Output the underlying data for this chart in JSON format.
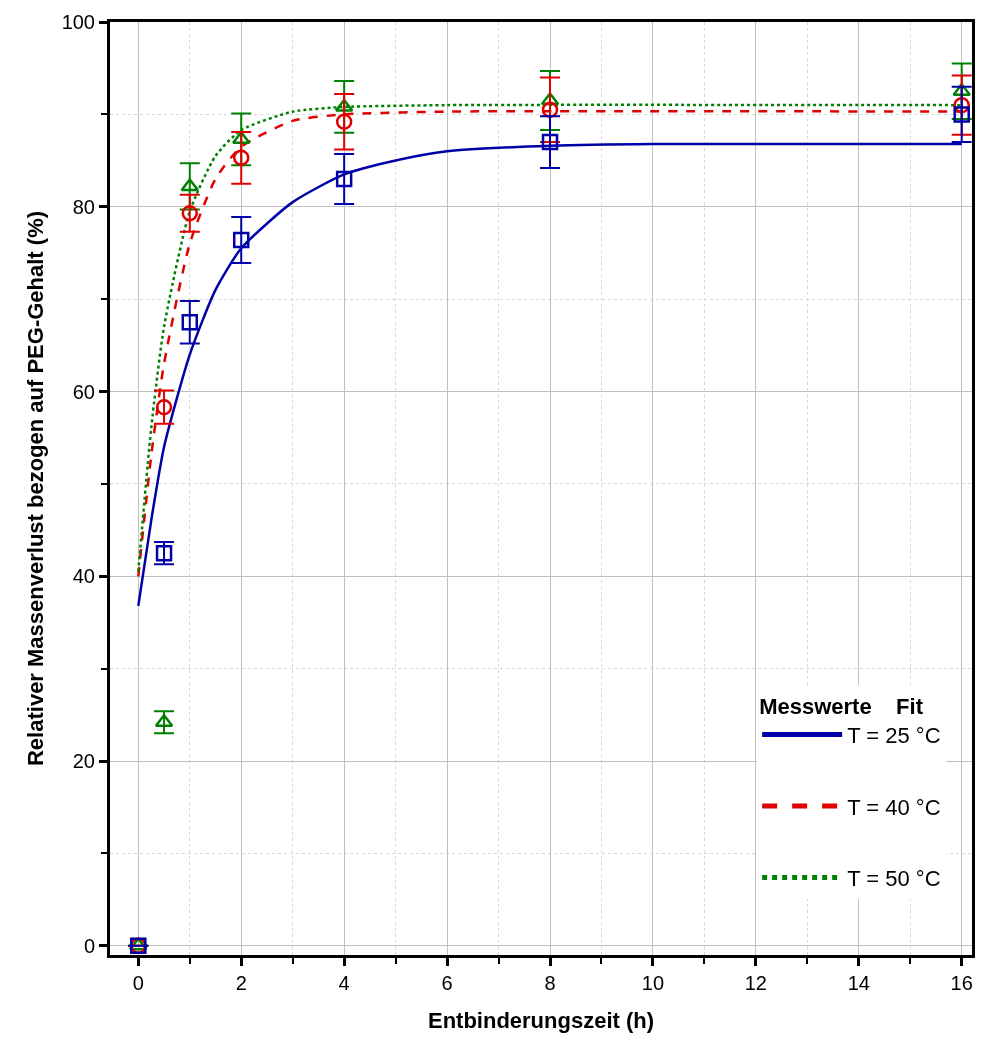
{
  "chart_data": {
    "type": "scatter",
    "xlabel": "Entbinderungszeit (h)",
    "ylabel": "Relativer Massenverlust bezogen auf PEG-Gehalt (%)",
    "legend_title": "Messwerte    Fit",
    "xlim": [
      -0.55,
      16.2
    ],
    "ylim": [
      -1,
      100
    ],
    "xticks": [
      0,
      2,
      4,
      6,
      8,
      10,
      12,
      14,
      16
    ],
    "yticks": [
      0,
      20,
      40,
      60,
      80,
      100
    ],
    "grid": true,
    "legend": "bottom right",
    "series": [
      {
        "marker": "square",
        "color": "#0000a8",
        "x": [
          0,
          0.5,
          1,
          2,
          4,
          8,
          16
        ],
        "values": [
          0,
          42.5,
          67.5,
          76.4,
          83,
          87,
          90
        ],
        "errors": [
          null,
          1.2,
          2.3,
          2.5,
          2.7,
          2.8,
          3
        ]
      },
      {
        "marker": "circle",
        "color": "#e00000",
        "x": [
          0,
          0.5,
          1,
          2,
          4,
          8,
          16
        ],
        "values": [
          0,
          58.3,
          79.3,
          85.3,
          89.2,
          90.5,
          91
        ],
        "errors": [
          null,
          1.8,
          2,
          2.8,
          3,
          3.5,
          3.2
        ]
      },
      {
        "marker": "triangle",
        "color": "#008000",
        "x": [
          0,
          0.5,
          1,
          2,
          4,
          8,
          16
        ],
        "values": [
          0,
          24.2,
          82.2,
          87.3,
          90.8,
          91.5,
          92.5
        ],
        "errors": [
          null,
          1.2,
          2.5,
          2.8,
          2.8,
          3.2,
          3
        ]
      },
      {
        "name": "T = 25 °C",
        "type": "line",
        "line_style": "solid",
        "color": "#0000a8",
        "x": [
          0,
          0.25,
          0.5,
          1,
          1.5,
          2,
          3,
          4,
          5,
          6,
          8,
          10,
          16
        ],
        "values": [
          36.8,
          46,
          54,
          64,
          71,
          75.5,
          80.5,
          83.5,
          85,
          86,
          86.6,
          86.8,
          86.8
        ]
      },
      {
        "name": "T = 40 °C",
        "type": "line",
        "line_style": "dashed",
        "color": "#e00000",
        "x": [
          0,
          0.25,
          0.5,
          1,
          1.5,
          2,
          3,
          4,
          6,
          16
        ],
        "values": [
          40,
          53,
          63,
          76,
          83,
          86.5,
          89.3,
          90,
          90.3,
          90.3
        ]
      },
      {
        "name": "T = 50 °C",
        "type": "line",
        "line_style": "dotted",
        "color": "#008000",
        "x": [
          0,
          0.25,
          0.5,
          1,
          1.5,
          2,
          3,
          4,
          6,
          16
        ],
        "values": [
          40.5,
          56,
          67,
          79.5,
          85.5,
          88.3,
          90.3,
          90.8,
          91,
          91
        ]
      }
    ]
  }
}
